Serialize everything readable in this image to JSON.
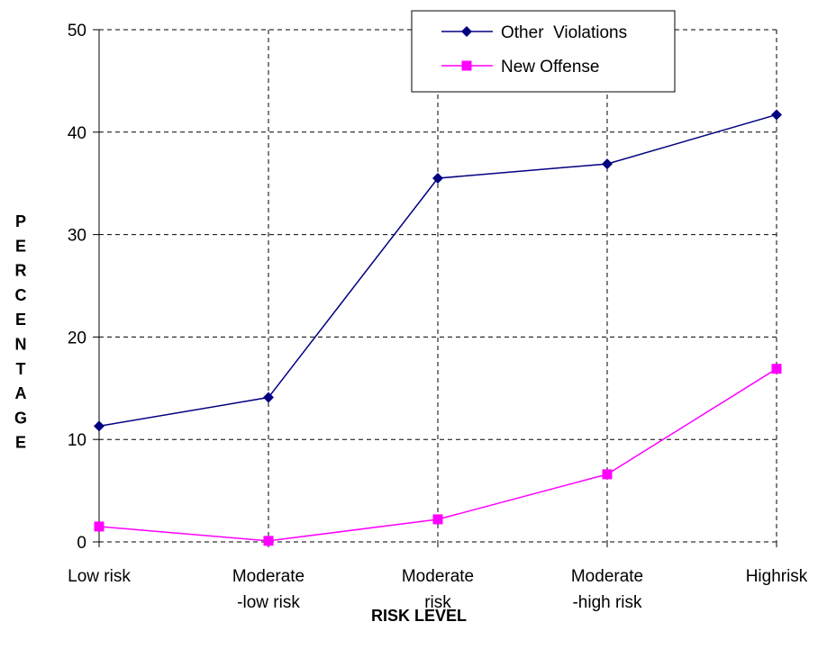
{
  "chart_data": {
    "type": "line",
    "categories": [
      [
        "Low risk"
      ],
      [
        "Moderate",
        "-low risk"
      ],
      [
        "Moderate",
        "risk"
      ],
      [
        "Moderate",
        "-high risk"
      ],
      [
        "Highrisk"
      ]
    ],
    "series": [
      {
        "name": "Other  Violations",
        "values": [
          11.3,
          14.1,
          35.5,
          36.9,
          41.7
        ],
        "color": "#000080",
        "marker": "diamond"
      },
      {
        "name": "New Offense",
        "values": [
          1.5,
          0.1,
          2.2,
          6.6,
          16.9
        ],
        "color": "#ff00ff",
        "marker": "square"
      }
    ],
    "yticks": [
      0,
      10,
      20,
      30,
      40,
      50
    ],
    "ylim": [
      0,
      50
    ],
    "xlabel": "RISK LEVEL",
    "ylabel": "PERCENTAGE",
    "grid": "horizontal-dashed",
    "legend_position": "top-right"
  }
}
